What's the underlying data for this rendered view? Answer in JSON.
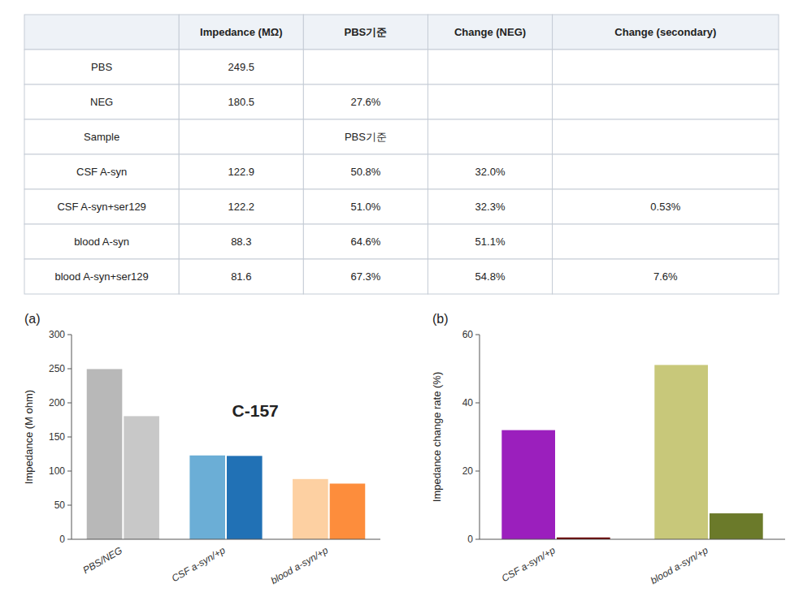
{
  "chart_data": [
    {
      "type": "table",
      "headers": [
        null,
        "Impedance (MΩ)",
        "PBS기준",
        "Change (NEG)",
        "Change (secondary)"
      ],
      "rows": [
        [
          "PBS",
          "249.5",
          null,
          null,
          null
        ],
        [
          "NEG",
          "180.5",
          "27.6%",
          null,
          null
        ],
        [
          "Sample",
          null,
          "PBS기준",
          null,
          null
        ],
        [
          "CSF A-syn",
          "122.9",
          "50.8%",
          "32.0%",
          null
        ],
        [
          "CSF A-syn+ser129",
          "122.2",
          "51.0%",
          "32.3%",
          "0.53%"
        ],
        [
          "blood A-syn",
          "88.3",
          "64.6%",
          "51.1%",
          null
        ],
        [
          "blood A-syn+ser129",
          "81.6",
          "67.3%",
          "54.8%",
          "7.6%"
        ]
      ]
    },
    {
      "type": "bar",
      "title": "(a)",
      "annotation": "C-157",
      "ylabel": "Impedance (M ohm)",
      "categories": [
        "PBS/NEG",
        "CSF a-syn/+p",
        "blood a-syn/+p"
      ],
      "series": [
        {
          "values": [
            249.5,
            122.9,
            88.3
          ],
          "colors": [
            "#b8b8b8",
            "#6baed6",
            "#fdd0a2"
          ]
        },
        {
          "values": [
            180.5,
            122.2,
            81.6
          ],
          "colors": [
            "#c8c8c8",
            "#2171b5",
            "#fd8d3c"
          ]
        }
      ],
      "ylim": [
        0,
        300
      ],
      "yticks": [
        0,
        50,
        100,
        150,
        200,
        250,
        300
      ],
      "grid": false
    },
    {
      "type": "bar",
      "title": "(b)",
      "ylabel": "Impedance change rate (%)",
      "categories": [
        "CSF a-syn/+p",
        "blood a-syn/+p"
      ],
      "series": [
        {
          "values": [
            32.0,
            51.1
          ],
          "colors": [
            "#9b1fbd",
            "#c8c87a"
          ]
        },
        {
          "values": [
            0.53,
            7.6
          ],
          "colors": [
            "#6b0000",
            "#6b7a2a"
          ]
        }
      ],
      "ylim": [
        0,
        60
      ],
      "yticks": [
        0,
        20,
        40,
        60
      ],
      "grid": false
    }
  ]
}
